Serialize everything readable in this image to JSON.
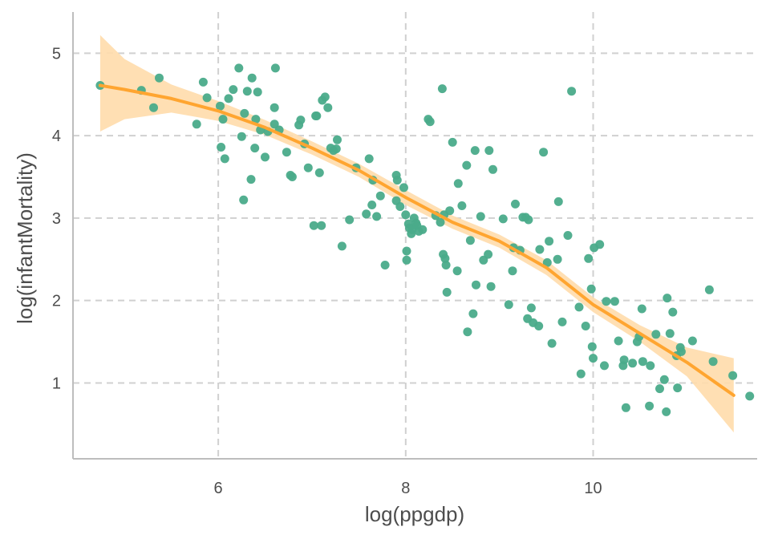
{
  "chart_data": {
    "type": "scatter",
    "title": "",
    "xlabel": "log(ppgdp)",
    "ylabel": "log(infantMortality)",
    "xlim": [
      4.45,
      11.75
    ],
    "ylim": [
      0.08,
      5.5
    ],
    "x_ticks": [
      6,
      8,
      10
    ],
    "y_ticks": [
      1,
      2,
      3,
      4,
      5
    ],
    "x_tick_labels": [
      "6",
      "8",
      "10"
    ],
    "y_tick_labels": [
      "1",
      "2",
      "3",
      "4",
      "5"
    ],
    "grid": true,
    "grid_style": "dashed",
    "legend": "none",
    "colors": {
      "points": "#4aab8a",
      "smooth_line": "#ffa530",
      "ribbon": "#ffdcab",
      "axis": "#bdbdbd",
      "grid": "#d0d0d0"
    },
    "series": [
      {
        "kind": "points",
        "x": [
          4.74,
          5.18,
          5.37,
          5.31,
          5.77,
          5.84,
          5.88,
          6.02,
          6.05,
          6.07,
          6.03,
          6.11,
          6.16,
          6.22,
          6.27,
          6.25,
          6.28,
          6.31,
          6.36,
          6.35,
          6.39,
          6.4,
          6.42,
          6.45,
          6.5,
          6.53,
          6.6,
          6.6,
          6.61,
          6.65,
          6.73,
          6.77,
          6.79,
          6.86,
          6.88,
          6.92,
          6.96,
          7.02,
          7.04,
          7.05,
          7.08,
          7.1,
          7.11,
          7.14,
          7.17,
          7.2,
          7.23,
          7.26,
          7.27,
          7.32,
          7.4,
          7.47,
          7.58,
          7.61,
          7.64,
          7.65,
          7.69,
          7.73,
          7.78,
          7.9,
          7.9,
          7.91,
          7.94,
          7.98,
          8.0,
          8.01,
          8.01,
          8.03,
          8.04,
          8.06,
          8.07,
          8.09,
          8.11,
          8.12,
          8.14,
          8.18,
          8.24,
          8.26,
          8.32,
          8.37,
          8.39,
          8.4,
          8.41,
          8.42,
          8.43,
          8.44,
          8.47,
          8.5,
          8.55,
          8.56,
          8.6,
          8.65,
          8.66,
          8.69,
          8.72,
          8.74,
          8.75,
          8.8,
          8.83,
          8.88,
          8.89,
          8.91,
          8.93,
          9.04,
          9.1,
          9.14,
          9.15,
          9.17,
          9.22,
          9.25,
          9.28,
          9.3,
          9.31,
          9.34,
          9.36,
          9.42,
          9.43,
          9.47,
          9.51,
          9.53,
          9.56,
          9.62,
          9.63,
          9.67,
          9.73,
          9.77,
          9.85,
          9.87,
          9.92,
          9.95,
          9.98,
          9.99,
          10.0,
          10.01,
          10.07,
          10.12,
          10.14,
          10.23,
          10.27,
          10.32,
          10.33,
          10.35,
          10.42,
          10.47,
          10.49,
          10.52,
          10.53,
          10.6,
          10.61,
          10.67,
          10.71,
          10.76,
          10.78,
          10.79,
          10.82,
          10.85,
          10.89,
          10.9,
          10.93,
          10.94,
          11.06,
          11.24,
          11.28,
          11.49,
          11.67
        ],
        "y": [
          4.61,
          4.55,
          4.7,
          4.34,
          4.14,
          4.65,
          4.46,
          4.36,
          4.2,
          3.72,
          3.86,
          4.45,
          4.56,
          4.82,
          3.22,
          3.99,
          4.27,
          4.54,
          4.7,
          3.47,
          3.85,
          4.2,
          4.53,
          4.07,
          3.74,
          4.05,
          4.34,
          4.14,
          4.82,
          4.07,
          3.8,
          3.52,
          3.5,
          4.13,
          4.19,
          3.9,
          3.61,
          2.91,
          4.24,
          4.24,
          3.55,
          2.91,
          4.43,
          4.47,
          4.34,
          3.85,
          3.82,
          3.84,
          3.95,
          2.66,
          2.98,
          3.61,
          3.05,
          3.72,
          3.16,
          3.46,
          3.02,
          3.27,
          2.43,
          3.52,
          3.21,
          3.46,
          3.14,
          3.37,
          3.04,
          2.6,
          2.49,
          2.93,
          2.88,
          2.81,
          2.86,
          3.0,
          2.94,
          2.91,
          2.84,
          2.86,
          4.2,
          4.17,
          3.03,
          2.95,
          4.57,
          2.56,
          3.04,
          2.51,
          2.43,
          2.1,
          3.09,
          3.92,
          2.36,
          3.42,
          3.15,
          3.64,
          1.62,
          2.73,
          1.84,
          3.82,
          2.19,
          3.02,
          2.49,
          2.56,
          3.82,
          2.17,
          3.59,
          2.99,
          1.95,
          2.36,
          2.64,
          3.17,
          2.61,
          3.01,
          3.01,
          1.78,
          2.98,
          1.91,
          1.73,
          1.69,
          2.62,
          3.8,
          2.46,
          2.72,
          1.48,
          2.5,
          3.2,
          1.74,
          2.79,
          4.54,
          1.92,
          1.11,
          1.69,
          2.51,
          2.14,
          1.44,
          1.3,
          2.64,
          2.68,
          1.21,
          1.99,
          1.99,
          1.51,
          1.21,
          1.28,
          0.7,
          1.24,
          1.5,
          1.56,
          1.9,
          1.26,
          0.72,
          1.21,
          1.59,
          0.93,
          1.04,
          0.65,
          2.03,
          1.6,
          1.86,
          1.33,
          0.94,
          1.43,
          1.38,
          1.51,
          2.13,
          1.26,
          1.09,
          0.84
        ]
      },
      {
        "kind": "smooth",
        "x": [
          4.74,
          5.0,
          5.5,
          6.0,
          6.5,
          7.0,
          7.5,
          8.0,
          8.5,
          9.0,
          9.5,
          10.0,
          10.5,
          11.0,
          11.5
        ],
        "y": [
          4.61,
          4.56,
          4.45,
          4.3,
          4.1,
          3.85,
          3.58,
          3.25,
          2.95,
          2.72,
          2.4,
          1.95,
          1.6,
          1.25,
          0.85
        ],
        "ci_lower": [
          4.05,
          4.2,
          4.28,
          4.18,
          4.01,
          3.77,
          3.5,
          3.16,
          2.87,
          2.64,
          2.31,
          1.86,
          1.5,
          1.08,
          0.4
        ],
        "ci_upper": [
          5.22,
          4.93,
          4.62,
          4.42,
          4.19,
          3.93,
          3.66,
          3.34,
          3.03,
          2.8,
          2.49,
          2.04,
          1.7,
          1.43,
          1.3
        ]
      }
    ]
  }
}
